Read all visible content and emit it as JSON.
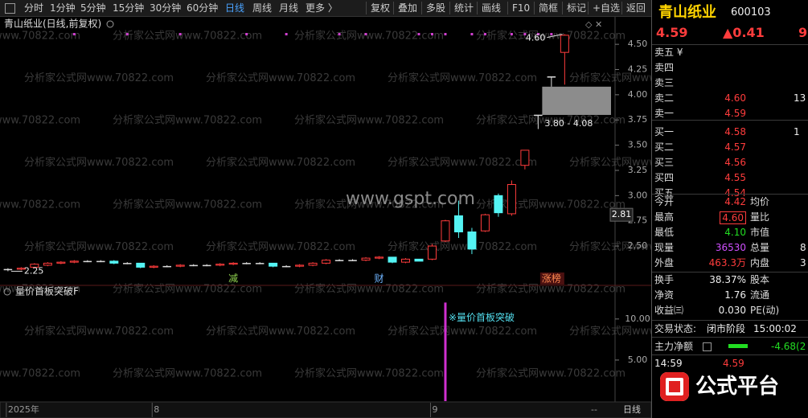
{
  "toolbar": {
    "tabs": [
      "分时",
      "1分钟",
      "5分钟",
      "15分钟",
      "30分钟",
      "60分钟",
      "日线",
      "周线",
      "月线",
      "更多 〉"
    ],
    "buttons": [
      "复权",
      "叠加",
      "多股",
      "统计",
      "画线",
      "F10",
      "简框",
      "标记",
      "+自选",
      "返回"
    ]
  },
  "chart_data": [
    {
      "type": "candlestick",
      "title": "青山纸业(日线,前复权)",
      "open": [
        2.27,
        2.27,
        2.29,
        2.31,
        2.33,
        2.34,
        2.35,
        2.35,
        2.35,
        2.33,
        2.33,
        2.29,
        2.3,
        2.3,
        2.31,
        2.31,
        2.31,
        2.32,
        2.33,
        2.33,
        2.33,
        2.3,
        2.3,
        2.31,
        2.33,
        2.36,
        2.36,
        2.36,
        2.38,
        2.39,
        2.34,
        2.37,
        2.37,
        2.55,
        2.8,
        2.64,
        2.65,
        3.0,
        2.82,
        3.3,
        3.8,
        4.18,
        4.42
      ],
      "high": [
        2.28,
        2.29,
        2.33,
        2.34,
        2.35,
        2.36,
        2.36,
        2.36,
        2.36,
        2.34,
        2.33,
        2.31,
        2.31,
        2.32,
        2.32,
        2.32,
        2.33,
        2.34,
        2.34,
        2.34,
        2.33,
        2.31,
        2.32,
        2.34,
        2.37,
        2.37,
        2.37,
        2.39,
        2.4,
        2.39,
        2.38,
        2.37,
        2.52,
        2.76,
        2.95,
        2.68,
        2.82,
        3.02,
        3.15,
        3.45,
        3.8,
        4.18,
        4.6
      ],
      "low": [
        2.25,
        2.26,
        2.28,
        2.3,
        2.32,
        2.33,
        2.34,
        2.34,
        2.32,
        2.32,
        2.28,
        2.28,
        2.29,
        2.29,
        2.3,
        2.3,
        2.3,
        2.31,
        2.32,
        2.32,
        2.29,
        2.29,
        2.29,
        2.3,
        2.32,
        2.35,
        2.35,
        2.35,
        2.37,
        2.33,
        2.33,
        2.35,
        2.36,
        2.54,
        2.58,
        2.42,
        2.64,
        2.79,
        2.8,
        3.26,
        3.66,
        4.08,
        4.1
      ],
      "close": [
        2.27,
        2.28,
        2.32,
        2.33,
        2.34,
        2.35,
        2.35,
        2.35,
        2.33,
        2.33,
        2.29,
        2.3,
        2.3,
        2.31,
        2.31,
        2.31,
        2.32,
        2.33,
        2.33,
        2.33,
        2.3,
        2.3,
        2.31,
        2.33,
        2.36,
        2.36,
        2.36,
        2.38,
        2.39,
        2.34,
        2.37,
        2.35,
        2.5,
        2.75,
        2.64,
        2.47,
        2.81,
        2.83,
        3.11,
        3.45,
        3.8,
        4.18,
        4.59
      ],
      "up_color": "#ff3c3c",
      "down_color": "#54f4f4",
      "flat_color": "#dddddd",
      "xlim": [
        -0.6,
        45.8
      ],
      "xticks": [
        {
          "value": 0,
          "label": "2025年"
        },
        {
          "value": 11,
          "label": "8"
        },
        {
          "value": 32,
          "label": "9"
        }
      ],
      "ylim": [
        2.11,
        4.78
      ],
      "yticks": [
        {
          "value": 4.5,
          "label": "4.50"
        },
        {
          "value": 4.25,
          "label": "4.25"
        },
        {
          "value": 4,
          "label": "4.00"
        },
        {
          "value": 3.75,
          "label": "3.75"
        },
        {
          "value": 3.5,
          "label": "3.50"
        },
        {
          "value": 3.25,
          "label": "3.25"
        },
        {
          "value": 3,
          "label": "3.00"
        },
        {
          "value": 2.75,
          "label": "2.75"
        },
        {
          "value": 2.5,
          "label": "2.50"
        }
      ],
      "high_mark": {
        "x": 42,
        "value": 4.6,
        "label": "4.60"
      },
      "low_mark": {
        "x": 0,
        "value": 2.25
      },
      "gap": {
        "x": 40,
        "low": 3.8,
        "high": 4.08,
        "label": "3.80 - 4.08"
      },
      "cursor_price": 2.81,
      "events": [
        {
          "x": 17,
          "label": "减"
        },
        {
          "x": 28,
          "label": "财"
        },
        {
          "x": 41,
          "label": "涨榜"
        }
      ],
      "signals": [
        5,
        9,
        13,
        18,
        21,
        25,
        27,
        31,
        32,
        33,
        35,
        36,
        38,
        39,
        40,
        41
      ],
      "signal_color": "#d040d0"
    },
    {
      "type": "bar",
      "title": "量价首板突破F",
      "x": [
        33
      ],
      "values": [
        12
      ],
      "color": "#d030d0",
      "annotation": "※量价首板突破",
      "ylim": [
        0,
        13.8
      ],
      "yticks": [
        {
          "value": 10,
          "label": "10.00"
        },
        {
          "value": 5,
          "label": "5.00"
        }
      ]
    }
  ],
  "watermark": "分析家公式网www.70822.com",
  "site": "www.gspt.com",
  "bottom_bar": {
    "status": "--",
    "period": "日线"
  },
  "quote": {
    "name": "青山纸业",
    "code": "600103",
    "price": "4.59",
    "change": "▲0.41",
    "pct": "9"
  },
  "order_book": [
    [
      "卖五 ¥"
    ],
    [
      "卖四"
    ],
    [
      "卖三"
    ],
    [
      "卖二",
      "4.60",
      "13"
    ],
    [
      "卖一",
      "4.59"
    ],
    [
      "买一",
      "4.58",
      "1"
    ],
    [
      "买二",
      "4.57"
    ],
    [
      "买三",
      "4.56"
    ],
    [
      "买四",
      "4.55"
    ],
    [
      "买五",
      "4.54"
    ]
  ],
  "stats": [
    [
      "今开",
      "4.42",
      "均价"
    ],
    [
      "最高",
      "4.60",
      "量比"
    ],
    [
      "最低",
      "4.10",
      "市值"
    ],
    [
      "现量",
      "36530",
      "总量",
      "8"
    ],
    [
      "外盘",
      "463.3万",
      "内盘",
      "3"
    ]
  ],
  "fundamentals": [
    [
      "换手",
      "38.37%",
      "股本"
    ],
    [
      "净资",
      "1.76",
      "流通"
    ],
    [
      "收益㈢",
      "0.030",
      "PE(动)"
    ]
  ],
  "status": {
    "label": "交易状态:",
    "value": "闭市阶段",
    "time": "15:00:02"
  },
  "main_flow": {
    "label": "主力净额",
    "value": "-4.68(2"
  },
  "tick": {
    "time": "14:59",
    "price": "4.59"
  },
  "logo": "公式平台"
}
